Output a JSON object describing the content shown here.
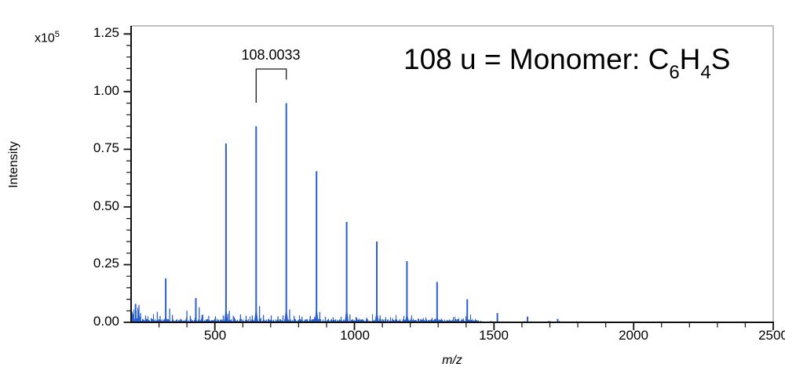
{
  "figure": {
    "title": {
      "part1": "108 u = Monomer: C",
      "sub1": "6",
      "part2": "H",
      "sub2": "4",
      "part3": "S"
    }
  },
  "axes": {
    "y_label": "Intensity",
    "y_multiplier_base": "x10",
    "y_multiplier_exp": "5",
    "x_label": "m/z",
    "y_tick_labels": [
      "0.00",
      "0.25",
      "0.50",
      "0.75",
      "1.00",
      "1.25"
    ],
    "x_tick_labels": [
      "500",
      "1000",
      "1500",
      "2000",
      "2500"
    ]
  },
  "chart_data": {
    "type": "bar",
    "subtype": "mass-spectrum-stick",
    "title": "108 u = Monomer: C6H4S",
    "xlabel": "m/z",
    "ylabel": "Intensity",
    "y_multiplier": "x10^5",
    "xlim": [
      200,
      2500
    ],
    "ylim": [
      0,
      1.285
    ],
    "x_major_ticks": [
      500,
      1000,
      1500,
      2000,
      2500
    ],
    "x_minor_tick_interval": 100,
    "y_major_ticks": [
      0,
      0.25,
      0.5,
      0.75,
      1.0,
      1.25
    ],
    "y_minor_tick_interval": 0.05,
    "repeat_unit_u": 108.0033,
    "monomer_formula": "C6H4S",
    "peaks": [
      {
        "mz": 216,
        "intensity": 0.08
      },
      {
        "mz": 324,
        "intensity": 0.19
      },
      {
        "mz": 432,
        "intensity": 0.105
      },
      {
        "mz": 540,
        "intensity": 0.775
      },
      {
        "mz": 648,
        "intensity": 0.85
      },
      {
        "mz": 756,
        "intensity": 0.95
      },
      {
        "mz": 864,
        "intensity": 0.655
      },
      {
        "mz": 972,
        "intensity": 0.435
      },
      {
        "mz": 1080,
        "intensity": 0.35
      },
      {
        "mz": 1188,
        "intensity": 0.265
      },
      {
        "mz": 1296,
        "intensity": 0.175
      },
      {
        "mz": 1404,
        "intensity": 0.1
      },
      {
        "mz": 1512,
        "intensity": 0.04
      },
      {
        "mz": 1620,
        "intensity": 0.025
      },
      {
        "mz": 1728,
        "intensity": 0.015
      }
    ],
    "minor_peaks": [
      {
        "mz": 228,
        "intensity": 0.075
      },
      {
        "mz": 234,
        "intensity": 0.04
      },
      {
        "mz": 252,
        "intensity": 0.03
      },
      {
        "mz": 294,
        "intensity": 0.045
      },
      {
        "mz": 304,
        "intensity": 0.028
      },
      {
        "mz": 338,
        "intensity": 0.06
      },
      {
        "mz": 348,
        "intensity": 0.032
      },
      {
        "mz": 400,
        "intensity": 0.05
      },
      {
        "mz": 412,
        "intensity": 0.028
      },
      {
        "mz": 444,
        "intensity": 0.065
      },
      {
        "mz": 454,
        "intensity": 0.032
      },
      {
        "mz": 478,
        "intensity": 0.028
      },
      {
        "mz": 502,
        "intensity": 0.026
      },
      {
        "mz": 530,
        "intensity": 0.03
      },
      {
        "mz": 552,
        "intensity": 0.05
      },
      {
        "mz": 566,
        "intensity": 0.028
      },
      {
        "mz": 592,
        "intensity": 0.034
      },
      {
        "mz": 612,
        "intensity": 0.028
      },
      {
        "mz": 634,
        "intensity": 0.03
      },
      {
        "mz": 660,
        "intensity": 0.07
      },
      {
        "mz": 674,
        "intensity": 0.032
      },
      {
        "mz": 702,
        "intensity": 0.03
      },
      {
        "mz": 726,
        "intensity": 0.026
      },
      {
        "mz": 744,
        "intensity": 0.03
      },
      {
        "mz": 768,
        "intensity": 0.055
      },
      {
        "mz": 784,
        "intensity": 0.028
      },
      {
        "mz": 812,
        "intensity": 0.024
      },
      {
        "mz": 842,
        "intensity": 0.028
      },
      {
        "mz": 876,
        "intensity": 0.045
      },
      {
        "mz": 896,
        "intensity": 0.024
      },
      {
        "mz": 924,
        "intensity": 0.022
      },
      {
        "mz": 952,
        "intensity": 0.024
      },
      {
        "mz": 984,
        "intensity": 0.034
      },
      {
        "mz": 1008,
        "intensity": 0.02
      },
      {
        "mz": 1044,
        "intensity": 0.02
      },
      {
        "mz": 1092,
        "intensity": 0.03
      },
      {
        "mz": 1136,
        "intensity": 0.018
      },
      {
        "mz": 1204,
        "intensity": 0.02
      },
      {
        "mz": 1256,
        "intensity": 0.015
      },
      {
        "mz": 1312,
        "intensity": 0.016
      },
      {
        "mz": 1364,
        "intensity": 0.012
      }
    ],
    "noise": {
      "seed": 1370108,
      "description": "baseline chemical noise",
      "dense_until_mz": 1445,
      "typical_amplitude": 0.015,
      "max_spike": 0.035,
      "left_edge_boost_until_mz": 235,
      "sparse_until_mz": 1800
    },
    "annotation": {
      "text": "108.0033",
      "from_mz": 648,
      "to_mz": 756
    },
    "colors": {
      "spectrum": "#2a5fd4",
      "axis": "#111111",
      "frame": "#aaaaaa",
      "text": "#000000"
    },
    "legend": "none",
    "grid": "off"
  }
}
